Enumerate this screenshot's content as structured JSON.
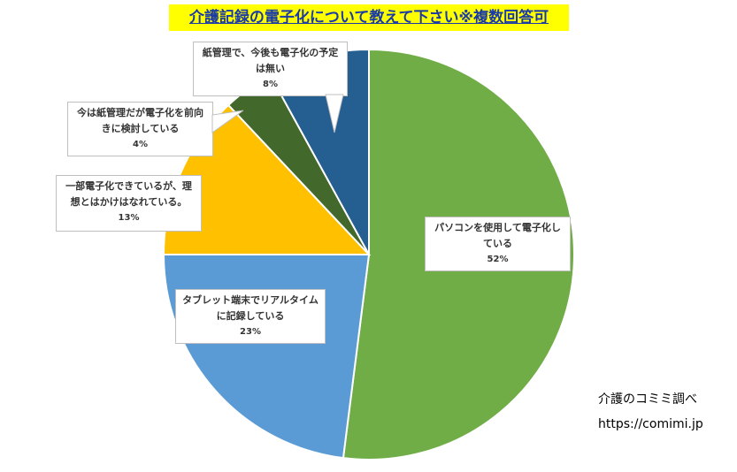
{
  "title": "介護記録の電子化について教えて下さい※複数回答可",
  "credit": {
    "source": "介護のコミミ調べ",
    "url": "https://comimi.jp"
  },
  "chart_data": {
    "type": "pie",
    "title": "介護記録の電子化について教えて下さい※複数回答可",
    "slices": [
      {
        "label": "パソコンを使用して電子化している",
        "value": 52,
        "value_label": "52%",
        "color": "#70ad47"
      },
      {
        "label": "タブレット端末でリアルタイムに記録している",
        "value": 23,
        "value_label": "23%",
        "color": "#5b9bd5"
      },
      {
        "label": "一部電子化できているが、理想とはかけはなれている。",
        "value": 13,
        "value_label": "13%",
        "color": "#ffc000"
      },
      {
        "label": "今は紙管理だが電子化を前向きに検討している",
        "value": 4,
        "value_label": "4%",
        "color": "#43682b"
      },
      {
        "label": "紙管理で、今後も電子化の予定は無い",
        "value": 8,
        "value_label": "8%",
        "color": "#255e91"
      }
    ],
    "start_angle": "12 o'clock",
    "direction": "clockwise",
    "legend": "none"
  }
}
